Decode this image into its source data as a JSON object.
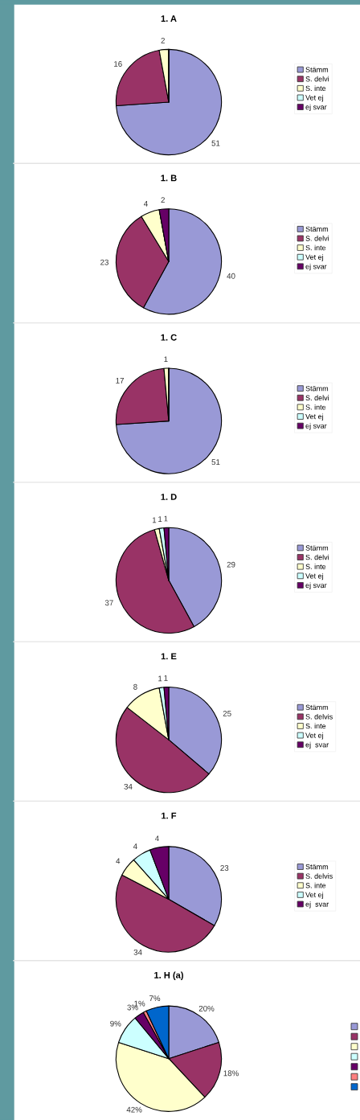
{
  "chart_data": [
    {
      "type": "pie",
      "title": "1. A",
      "categories": [
        "Stämm",
        "S. delvi",
        "S. inte",
        "Vet ej",
        "ej svar"
      ],
      "values": [
        51,
        16,
        2,
        0,
        0
      ],
      "value_labels": [
        "51",
        "16",
        "2",
        null,
        null
      ],
      "colors": [
        "#9999d6",
        "#993366",
        "#ffffcc",
        "#ccffff",
        "#660066"
      ],
      "legend": "right"
    },
    {
      "type": "pie",
      "title": "1. B",
      "categories": [
        "Stämm",
        "S. delvi",
        "S. inte",
        "Vet ej",
        "ej svar"
      ],
      "values": [
        40,
        23,
        4,
        0,
        2
      ],
      "value_labels": [
        "40",
        "23",
        "4",
        null,
        "2"
      ],
      "colors": [
        "#9999d6",
        "#993366",
        "#ffffcc",
        "#ccffff",
        "#660066"
      ],
      "legend": "right"
    },
    {
      "type": "pie",
      "title": "1. C",
      "categories": [
        "Stämm",
        "S. delvi",
        "S. inte",
        "Vet ej",
        "ej svar"
      ],
      "values": [
        51,
        17,
        1,
        0,
        0
      ],
      "value_labels": [
        "51",
        "17",
        "1",
        null,
        null
      ],
      "colors": [
        "#9999d6",
        "#993366",
        "#ffffcc",
        "#ccffff",
        "#660066"
      ],
      "legend": "right"
    },
    {
      "type": "pie",
      "title": "1. D",
      "categories": [
        "Stämm",
        "S. delvi",
        "S. inte",
        "Vet ej",
        "ej svar"
      ],
      "values": [
        29,
        37,
        1,
        1,
        1
      ],
      "value_labels": [
        "29",
        "37",
        "1",
        "1",
        "1"
      ],
      "colors": [
        "#9999d6",
        "#993366",
        "#ffffcc",
        "#ccffff",
        "#660066"
      ],
      "legend": "right"
    },
    {
      "type": "pie",
      "title": "1. E",
      "categories": [
        "Stämm",
        "S. delvis",
        "S. inte",
        "Vet ej",
        "ej  svar"
      ],
      "values": [
        25,
        34,
        8,
        1,
        1
      ],
      "value_labels": [
        "25",
        "34",
        "8",
        "1",
        "1"
      ],
      "colors": [
        "#9999d6",
        "#993366",
        "#ffffcc",
        "#ccffff",
        "#660066"
      ],
      "legend": "right"
    },
    {
      "type": "pie",
      "title": "1. F",
      "categories": [
        "Stämm",
        "S. delvis",
        "S. inte",
        "Vet ej",
        "ej  svar"
      ],
      "values": [
        23,
        34,
        4,
        4,
        4
      ],
      "value_labels": [
        "23",
        "34",
        "4",
        "4",
        "4"
      ],
      "colors": [
        "#9999d6",
        "#993366",
        "#ffffcc",
        "#ccffff",
        "#660066"
      ],
      "legend": "right"
    },
    {
      "type": "pie",
      "title": "1. H (a)",
      "categories": [
        null,
        null,
        null,
        null,
        null,
        null,
        null
      ],
      "values": [
        20,
        18,
        42,
        9,
        3,
        1,
        7
      ],
      "value_labels": [
        "20%",
        "18%",
        "42%",
        "9%",
        "3%",
        "1%",
        "7%"
      ],
      "colors": [
        "#9999d6",
        "#993366",
        "#ffffcc",
        "#ccffff",
        "#660066",
        "#ff8080",
        "#0066cc"
      ]
    }
  ]
}
